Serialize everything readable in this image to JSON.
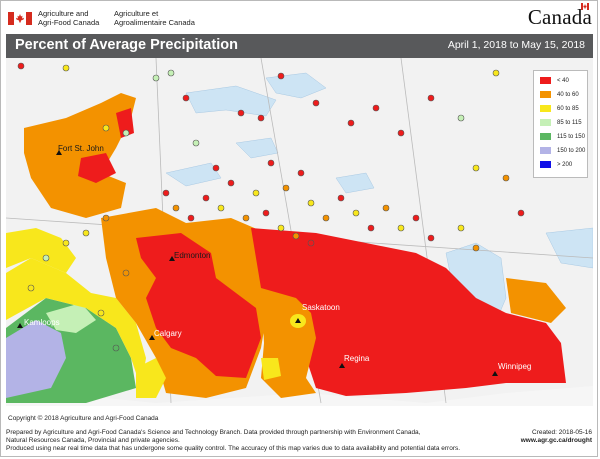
{
  "header": {
    "dept_en_line1": "Agriculture and",
    "dept_en_line2": "Agri-Food Canada",
    "dept_fr_line1": "Agriculture et",
    "dept_fr_line2": "Agroalimentaire Canada",
    "wordmark": "Canada",
    "flag_red": "#d52b1e"
  },
  "titlebar": {
    "title": "Percent of Average Precipitation",
    "date_range": "April 1, 2018 to May 15, 2018",
    "background": "#58595b"
  },
  "legend": {
    "items": [
      {
        "label": "< 40",
        "color": "#ee1c1c"
      },
      {
        "label": "40 to 60",
        "color": "#f39200"
      },
      {
        "label": "60 to 85",
        "color": "#f8e71c"
      },
      {
        "label": "85 to 115",
        "color": "#c5f0b6"
      },
      {
        "label": "115 to 150",
        "color": "#5bb761"
      },
      {
        "label": "150 to 200",
        "color": "#b3b3e6"
      },
      {
        "label": "> 200",
        "color": "#1010e8"
      }
    ]
  },
  "cities": [
    {
      "name": "Fort St. John"
    },
    {
      "name": "Edmonton"
    },
    {
      "name": "Kamloops"
    },
    {
      "name": "Calgary"
    },
    {
      "name": "Saskatoon"
    },
    {
      "name": "Regina"
    },
    {
      "name": "Winnipeg"
    }
  ],
  "footer": {
    "copyright": "Copyright © 2018 Agriculture and Agri-Food Canada",
    "line1": "Prepared by Agriculture and Agri-Food Canada's Science and Technology Branch. Data provided through partnership with Environment Canada,",
    "line2": "Natural Resources Canada, Provincial and private agencies.",
    "line3": "Produced using near real time data that has undergone some quality control. The accuracy of this map varies due to data availability and potential data errors.",
    "created": "Created: 2018-05-16",
    "url": "www.agr.gc.ca/drought"
  }
}
